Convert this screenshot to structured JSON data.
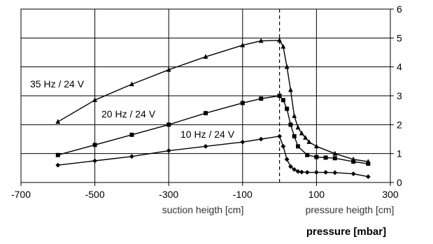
{
  "chart_data": {
    "type": "line",
    "x_ticks": [
      "-700",
      "-500",
      "-300",
      "-100",
      "100",
      "300"
    ],
    "y_ticks": [
      "0",
      "1",
      "2",
      "3",
      "4",
      "5",
      "6"
    ],
    "x_text_left": "suction heigth [cm]",
    "x_text_right": "pressure heigth [cm]",
    "xlabel": "pressure [mbar]",
    "xlim": [
      -700,
      300
    ],
    "ylim": [
      0,
      6
    ],
    "divider_x": 0,
    "grid": true,
    "series": [
      {
        "name": "35 Hz / 24 V",
        "marker": "triangle",
        "x": [
          -600,
          -500,
          -400,
          -300,
          -200,
          -100,
          -50,
          0,
          10,
          20,
          30,
          40,
          50,
          60,
          70,
          80,
          100,
          150,
          200,
          240
        ],
        "y": [
          2.1,
          2.85,
          3.4,
          3.9,
          4.35,
          4.75,
          4.9,
          4.92,
          4.7,
          4.0,
          3.2,
          2.3,
          1.9,
          1.7,
          1.55,
          1.4,
          1.25,
          1.0,
          0.8,
          0.72
        ]
      },
      {
        "name": "20 Hz / 24 V",
        "marker": "square",
        "x": [
          -600,
          -500,
          -400,
          -300,
          -200,
          -100,
          -50,
          0,
          10,
          20,
          30,
          40,
          50,
          75,
          100,
          125,
          150,
          200,
          240
        ],
        "y": [
          0.95,
          1.3,
          1.65,
          2.0,
          2.4,
          2.75,
          2.9,
          3.0,
          2.85,
          2.55,
          2.0,
          1.6,
          1.25,
          0.95,
          0.88,
          0.86,
          0.84,
          0.72,
          0.65
        ]
      },
      {
        "name": "10 Hz / 24 V",
        "marker": "diamond",
        "x": [
          -600,
          -500,
          -400,
          -300,
          -200,
          -100,
          -50,
          0,
          10,
          20,
          30,
          40,
          50,
          60,
          75,
          100,
          125,
          150,
          200,
          240
        ],
        "y": [
          0.6,
          0.75,
          0.9,
          1.1,
          1.25,
          1.4,
          1.5,
          1.6,
          1.25,
          0.8,
          0.55,
          0.45,
          0.38,
          0.36,
          0.35,
          0.35,
          0.35,
          0.34,
          0.3,
          0.2
        ]
      }
    ]
  }
}
